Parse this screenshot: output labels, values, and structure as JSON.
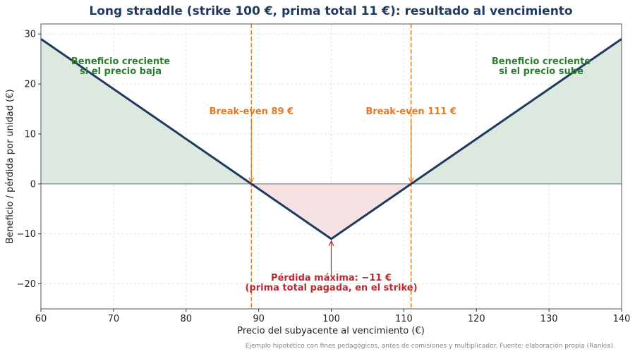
{
  "chart_data": {
    "type": "line",
    "title": "Long straddle (strike 100 €, prima total 11 €): resultado al vencimiento",
    "xlabel": "Precio del subyacente al vencimiento (€)",
    "ylabel": "Beneficio / pérdida por unidad (€)",
    "xlim": [
      60,
      140
    ],
    "ylim": [
      -25,
      32
    ],
    "xticks": [
      60,
      70,
      80,
      90,
      100,
      110,
      120,
      130,
      140
    ],
    "yticks": [
      -20,
      -10,
      0,
      10,
      20,
      30
    ],
    "grid": true,
    "series": [
      {
        "values_x": [
          60,
          100,
          140
        ],
        "values_y": [
          29,
          -11,
          29
        ],
        "color": "#1f3a5f"
      }
    ],
    "breakevens": [
      89,
      111
    ],
    "annotations": {
      "profit_left": [
        "Beneficio creciente",
        "si el precio baja"
      ],
      "profit_right": [
        "Beneficio creciente",
        "si el precio sube"
      ],
      "breakeven_left": "Break-even 89 €",
      "breakeven_right": "Break-even 111 €",
      "max_loss": [
        "Pérdida máxima: −11 €",
        "(prima total pagada, en el strike)"
      ]
    },
    "footnote": "Ejemplo hipotético con fines pedagógicos, antes de comisiones y multiplicador. Fuente: elaboración propia (Rankia).",
    "colors": {
      "line": "#1f3a5f",
      "profit_fill": "#dde9df",
      "loss_fill": "#f5e1e2",
      "breakeven": "#e87722",
      "profit_text": "#2e7d32",
      "loss_text": "#c0282d",
      "zero_line": "#777777"
    }
  }
}
